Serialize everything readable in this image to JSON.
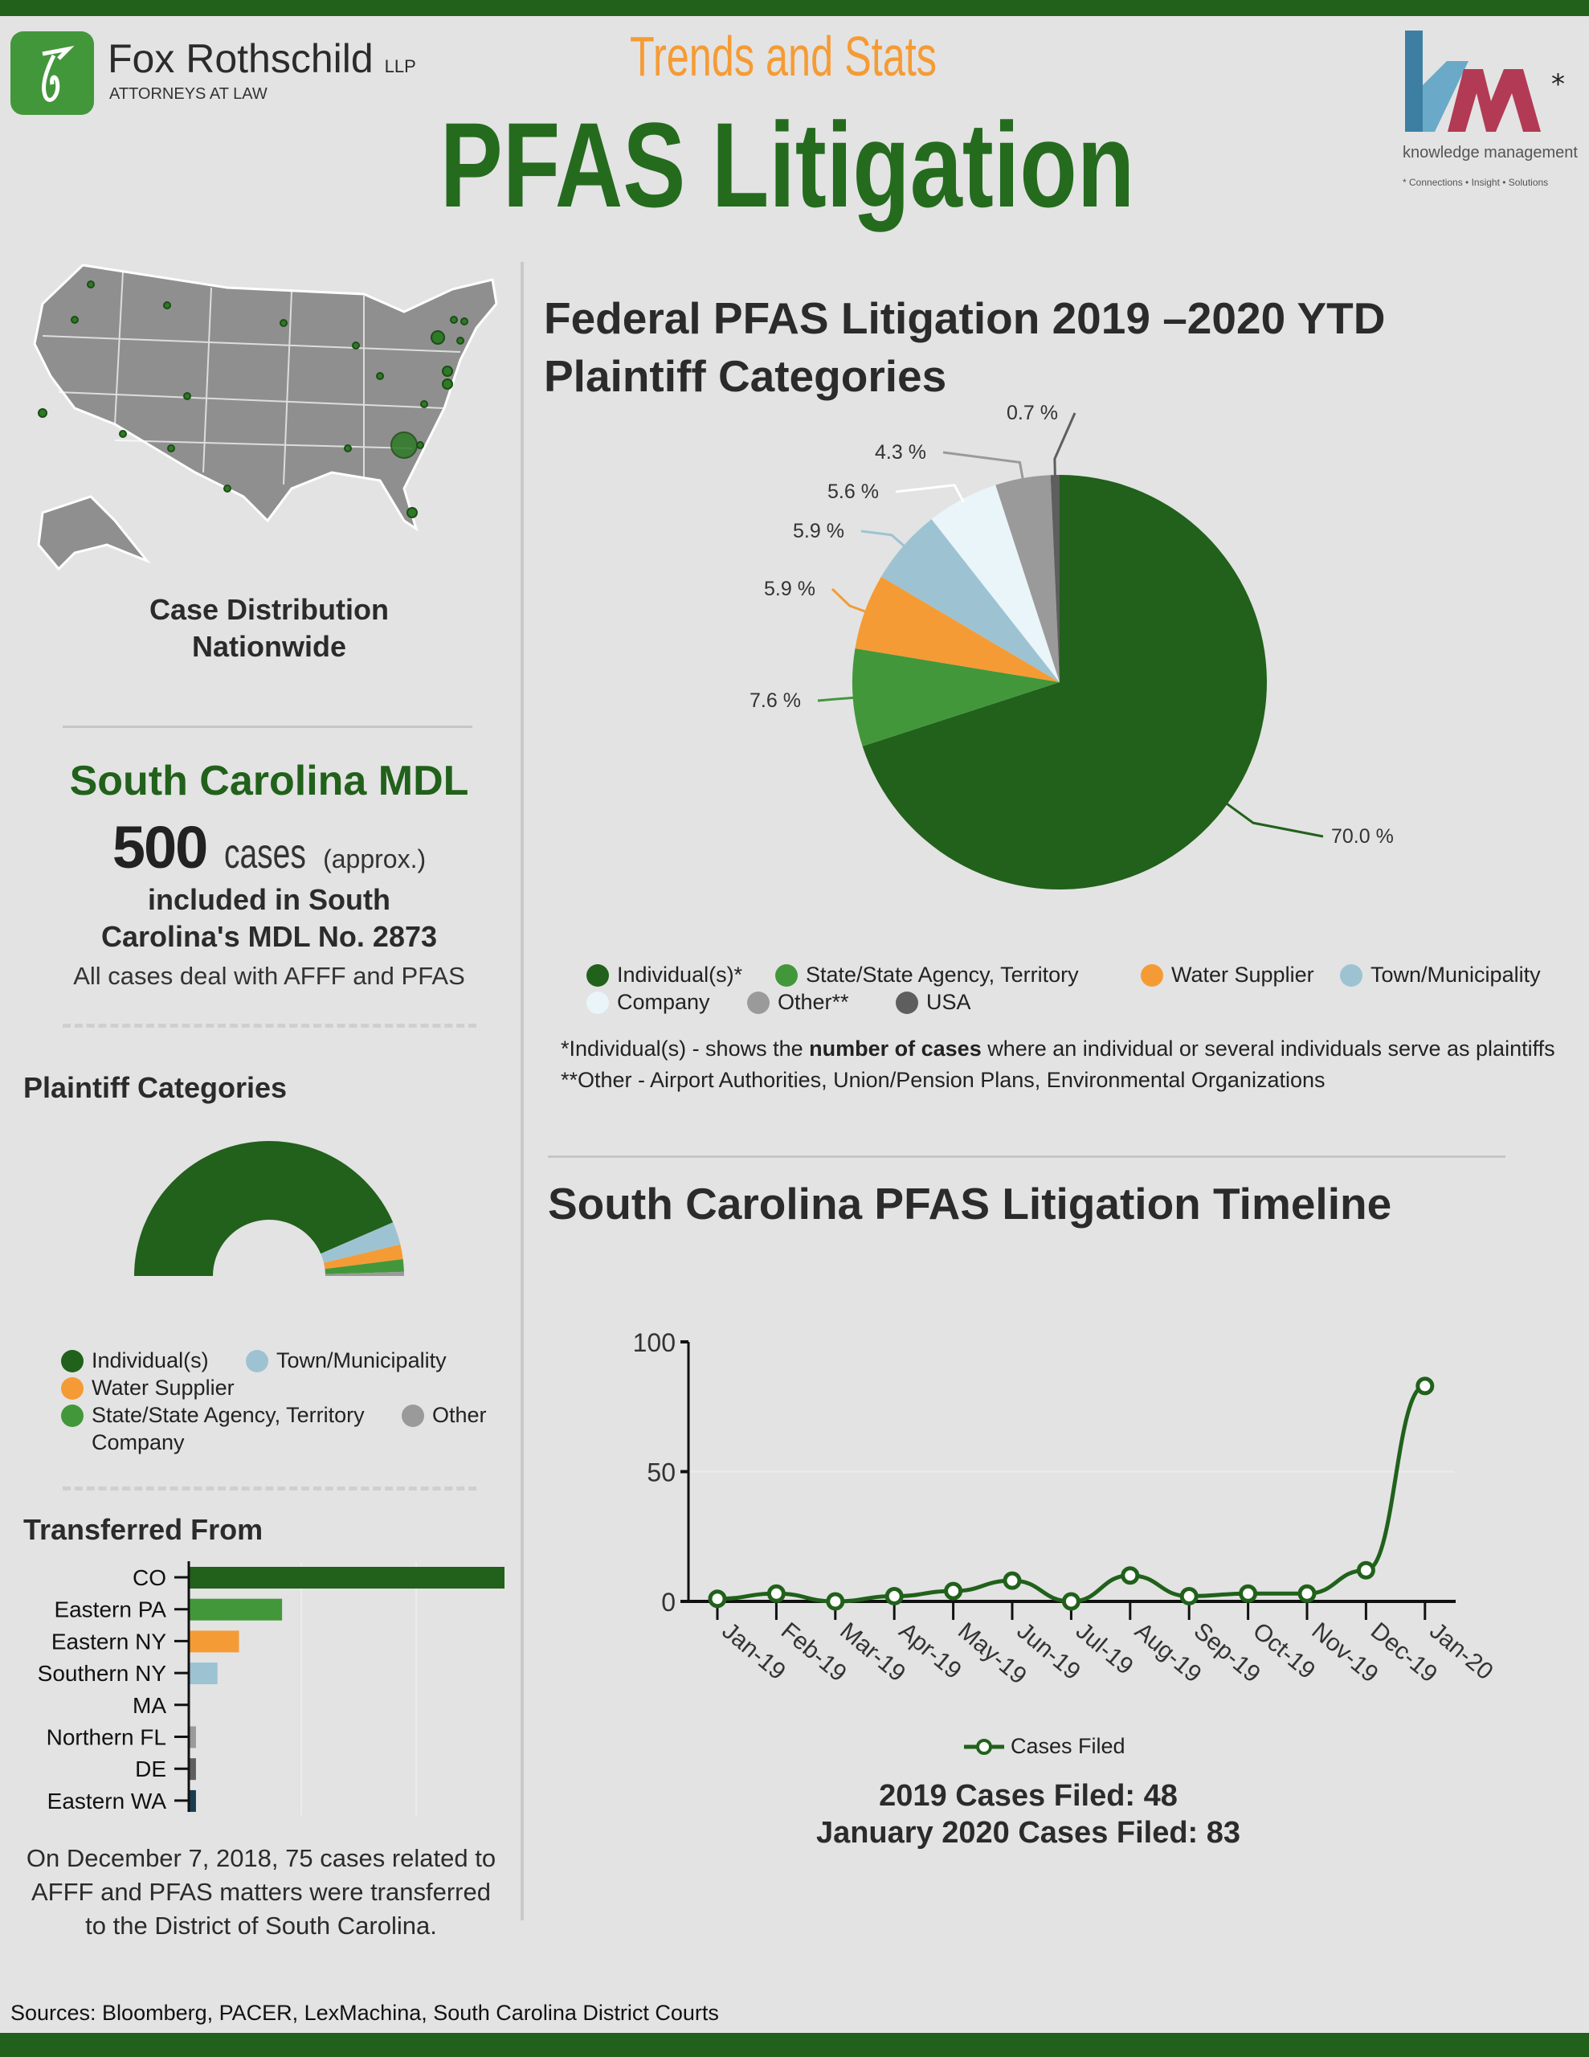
{
  "header": {
    "firm_name": "Fox Rothschild",
    "firm_suffix": "LLP",
    "firm_tagline": "ATTORNEYS AT LAW",
    "kicker": "Trends and Stats",
    "title": "PFAS Litigation",
    "km_logo_text": "km",
    "km_caption": "knowledge management",
    "km_slogan": "* Connections • Insight • Solutions"
  },
  "colors": {
    "dark_green": "#21611b",
    "green": "#43973b",
    "orange": "#f59b35",
    "light_blue": "#9dc3d3",
    "pale_blue": "#e9f5f9",
    "gray": "#9a9a9a",
    "dark_gray": "#5e5e5e",
    "navy": "#173d4f"
  },
  "map": {
    "caption_line1": "Case Distribution",
    "caption_line2": "Nationwide"
  },
  "mdl": {
    "title": "South Carolina MDL",
    "count": "500",
    "count_unit": "cases",
    "approx": "(approx.)",
    "line1": "included in South",
    "line2": "Carolina's MDL No. 2873",
    "note": "All cases deal with AFFF and PFAS"
  },
  "sidebar_footnote": {
    "line1": "On December 7, 2018, 75 cases related to",
    "line2": "AFFF and PFAS matters were transferred",
    "line3": "to the District of South Carolina."
  },
  "sources": "Sources: Bloomberg, PACER, LexMachina, South Carolina District Courts",
  "notes": {
    "note1_pre": "*Individual(s) - shows the ",
    "note1_bold": "number of cases",
    "note1_post": " where an individual or several individuals serve as plaintiffs",
    "note2": "**Other - Airport Authorities, Union/Pension Plans, Environmental Organizations"
  },
  "timeline_summary": {
    "line1": "2019 Cases Filed: 48",
    "line2": "January 2020 Cases Filed: 83"
  },
  "chart_data": [
    {
      "type": "pie",
      "title": "Federal PFAS Litigation 2019 –2020 YTD",
      "subtitle": "Plaintiff Categories",
      "categories": [
        "Individual(s)*",
        "State/State Agency, Territory",
        "Water Supplier",
        "Town/Municipality",
        "Company",
        "Other**",
        "USA"
      ],
      "values": [
        70.0,
        7.6,
        5.9,
        5.9,
        5.6,
        4.3,
        0.7
      ],
      "labels": [
        "70.0 %",
        "7.6 %",
        "5.9 %",
        "5.9 %",
        "5.6 %",
        "4.3 %",
        "0.7 %"
      ],
      "colors": [
        "#21611b",
        "#43973b",
        "#f59b35",
        "#9dc3d3",
        "#e9f5f9",
        "#9a9a9a",
        "#5e5e5e"
      ],
      "legend": "bottom"
    },
    {
      "type": "pie",
      "variant": "half-donut",
      "title": "Plaintiff Categories",
      "categories": [
        "Individual(s)",
        "Town/Municipality",
        "Water Supplier",
        "State/State Agency, Territory",
        "Company",
        "Other"
      ],
      "values": [
        87,
        5.5,
        3.5,
        3,
        0,
        1
      ],
      "colors": [
        "#21611b",
        "#9dc3d3",
        "#f59b35",
        "#43973b",
        "#e9f5f9",
        "#9a9a9a"
      ],
      "legend": "bottom"
    },
    {
      "type": "bar",
      "orientation": "horizontal",
      "title": "Transferred From",
      "categories": [
        "CO",
        "Eastern PA",
        "Eastern NY",
        "Southern NY",
        "MA",
        "Northern FL",
        "DE",
        "Eastern WA"
      ],
      "values": [
        44,
        13,
        7,
        4,
        0,
        1,
        1,
        1
      ],
      "colors": [
        "#21611b",
        "#43973b",
        "#f59b35",
        "#9dc3d3",
        "#e9f5f9",
        "#9a9a9a",
        "#5e5e5e",
        "#173d4f"
      ],
      "xlim": [
        0,
        44
      ]
    },
    {
      "type": "line",
      "title": "South Carolina PFAS Litigation Timeline",
      "series_name": "Cases Filed",
      "x": [
        "Jan-19",
        "Feb-19",
        "Mar-19",
        "Apr-19",
        "May-19",
        "Jun-19",
        "Jul-19",
        "Aug-19",
        "Sep-19",
        "Oct-19",
        "Nov-19",
        "Dec-19",
        "Jan-20"
      ],
      "values": [
        1,
        3,
        0,
        2,
        4,
        8,
        0,
        10,
        2,
        3,
        3,
        12,
        83
      ],
      "yticks": [
        "0",
        "50",
        "100"
      ],
      "ylim": [
        0,
        100
      ],
      "legend": "bottom"
    }
  ]
}
